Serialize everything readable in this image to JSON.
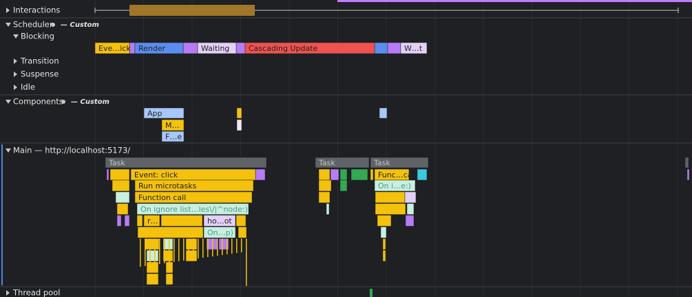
{
  "tracks": {
    "interactions": "Interactions",
    "scheduler": "Scheduler",
    "scheduler_note": "— Custom",
    "blocking": "Blocking",
    "transition": "Transition",
    "suspense": "Suspense",
    "idle": "Idle",
    "components": "Components",
    "components_note": "— Custom",
    "main": "Main — http://localhost:5173/",
    "thread_pool": "Thread pool"
  },
  "scheduler_blocks": [
    "Eve…ick",
    "Render",
    "Waiting",
    "Cascading Update",
    "W…t"
  ],
  "component_blocks": [
    "App",
    "M…",
    "F…e"
  ],
  "main_blocks": [
    "Task",
    "Task",
    "Task",
    "Event: click",
    "Run microtasks",
    "Function call",
    "On ignore list…les\\/|^node:)",
    "r…",
    "ho…ot",
    "On…p)",
    "Func…call",
    "On i…e:)"
  ]
}
